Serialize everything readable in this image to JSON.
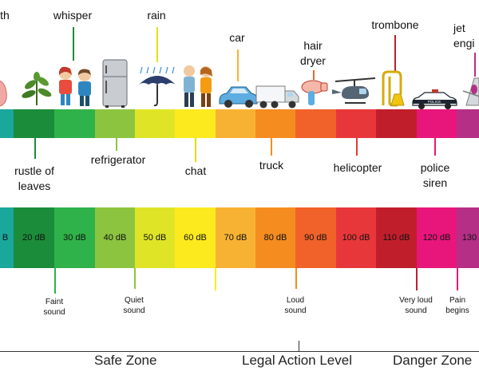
{
  "top_labels": {
    "mouth": "th",
    "whisper": "whisper",
    "rain": "rain",
    "car": "car",
    "hair_dryer": "hair\ndryer",
    "trombone": "trombone",
    "jet": "jet\nengi"
  },
  "mid_labels": {
    "rustle": "rustle of\nleaves",
    "refrigerator": "refrigerator",
    "chat": "chat",
    "truck": "truck",
    "helicopter": "helicopter",
    "police": "police\nsiren"
  },
  "db_cells": [
    {
      "label": "B",
      "color": "#1aa79c"
    },
    {
      "label": "20 dB",
      "color": "#1b8c3a"
    },
    {
      "label": "30 dB",
      "color": "#2fb24a"
    },
    {
      "label": "40 dB",
      "color": "#8cc43f"
    },
    {
      "label": "50 dB",
      "color": "#dfe526"
    },
    {
      "label": "60 dB",
      "color": "#fdea1e"
    },
    {
      "label": "70 dB",
      "color": "#f8b233"
    },
    {
      "label": "80 dB",
      "color": "#f58c1f"
    },
    {
      "label": "90 dB",
      "color": "#f0622a"
    },
    {
      "label": "100 dB",
      "color": "#e8373a"
    },
    {
      "label": "110 dB",
      "color": "#c11e2c"
    },
    {
      "label": "120 dB",
      "color": "#e8167b"
    },
    {
      "label": "130",
      "color": "#b52f86"
    }
  ],
  "notes": {
    "faint": "Faint\nsound",
    "quiet": "Quiet\nsound",
    "loud": "Loud\nsound",
    "very_loud": "Very loud\nsound",
    "pain": "Pain\nbegins"
  },
  "zones": {
    "safe": "Safe Zone",
    "legal": "Legal Action Level",
    "danger": "Danger Zone"
  },
  "police_car_text": "POLICE",
  "colors": {
    "stick_green": "#1b8c3a",
    "stick_orange": "#f58c1f",
    "stick_red": "#e8373a",
    "stick_pink": "#e8167b"
  },
  "icons": [
    "lungs-icon",
    "plant-icon",
    "whispering-children-icon",
    "refrigerator-icon",
    "rain-umbrella-icon",
    "chatting-people-icon",
    "car-icon",
    "truck-icon",
    "hair-dryer-icon",
    "helicopter-icon",
    "trombone-icon",
    "police-car-icon",
    "jet-engine-icon"
  ]
}
